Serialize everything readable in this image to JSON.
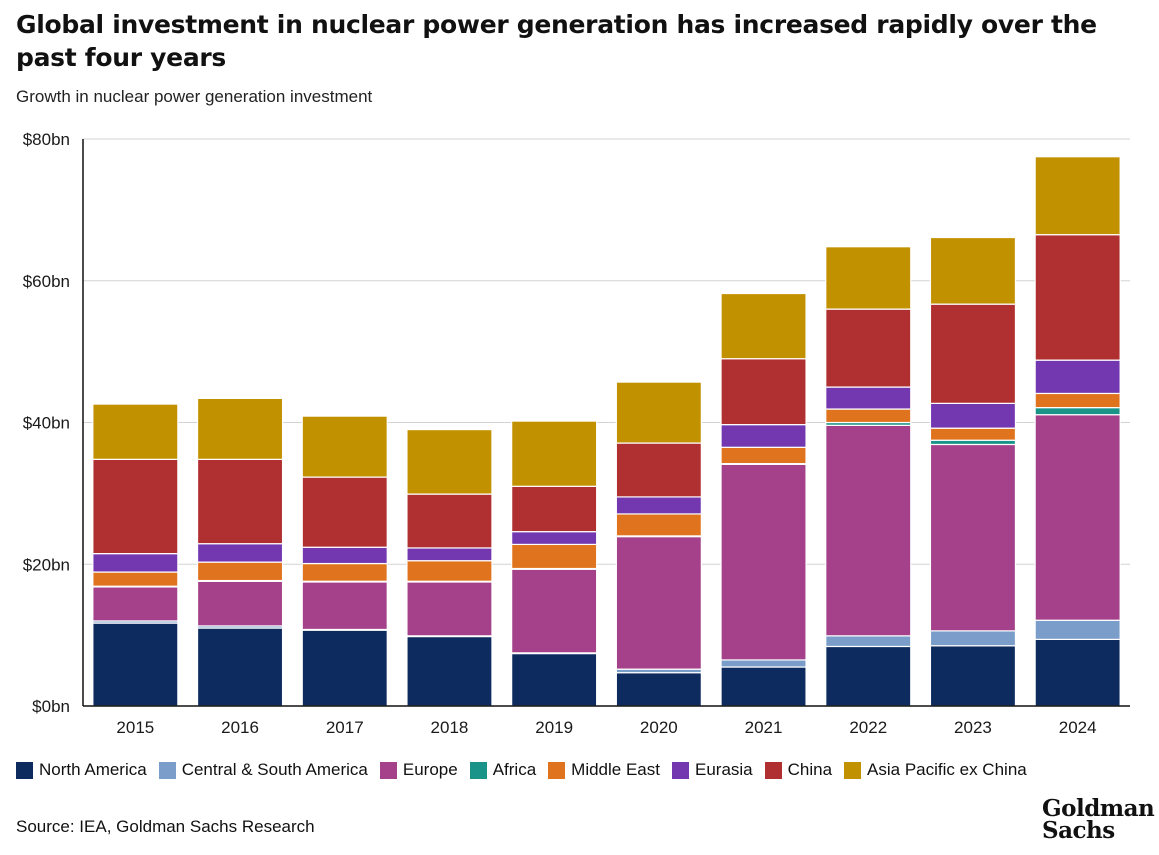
{
  "title": "Global investment in nuclear power generation has increased rapidly over the past four years",
  "subtitle": "Growth in nuclear power generation investment",
  "source": "Source: IEA, Goldman Sachs Research",
  "logo_text": [
    "Goldman",
    "Sachs"
  ],
  "chart_data": {
    "type": "bar",
    "stacked": true,
    "categories": [
      "2015",
      "2016",
      "2017",
      "2018",
      "2019",
      "2020",
      "2021",
      "2022",
      "2023",
      "2024"
    ],
    "yticks": [
      0,
      20,
      40,
      60,
      80
    ],
    "ytick_labels": [
      "$0bn",
      "$20bn",
      "$40bn",
      "$60bn",
      "$80bn"
    ],
    "ylim": [
      0,
      80
    ],
    "grid": true,
    "legend_position": "bottom",
    "series": [
      {
        "name": "North America",
        "color": "#0d2b5e",
        "values": [
          11.7,
          11.0,
          10.7,
          9.8,
          7.4,
          4.7,
          5.5,
          8.4,
          8.5,
          9.4
        ]
      },
      {
        "name": "Central & South America",
        "color": "#7a9dc9",
        "values": [
          0.3,
          0.3,
          0.1,
          0.1,
          0.1,
          0.5,
          1.0,
          1.5,
          2.1,
          2.7
        ]
      },
      {
        "name": "Europe",
        "color": "#a4418a",
        "values": [
          4.8,
          6.3,
          6.7,
          7.6,
          11.8,
          18.7,
          27.6,
          29.7,
          26.3,
          29.0
        ]
      },
      {
        "name": "Africa",
        "color": "#1a9488",
        "values": [
          0.1,
          0.1,
          0.1,
          0.1,
          0.1,
          0.1,
          0.1,
          0.4,
          0.6,
          1.0
        ]
      },
      {
        "name": "Middle East",
        "color": "#e0741e",
        "values": [
          2.0,
          2.6,
          2.5,
          2.9,
          3.4,
          3.1,
          2.3,
          1.9,
          1.7,
          2.0
        ]
      },
      {
        "name": "Eurasia",
        "color": "#7338b0",
        "values": [
          2.6,
          2.6,
          2.3,
          1.8,
          1.8,
          2.4,
          3.2,
          3.1,
          3.5,
          4.7
        ]
      },
      {
        "name": "China",
        "color": "#b03031",
        "values": [
          13.3,
          11.9,
          9.9,
          7.6,
          6.4,
          7.6,
          9.3,
          11.0,
          14.0,
          17.7
        ]
      },
      {
        "name": "Asia Pacific ex China",
        "color": "#c29100",
        "values": [
          7.8,
          8.6,
          8.6,
          9.1,
          9.2,
          8.6,
          9.2,
          8.8,
          9.4,
          11.0
        ]
      }
    ]
  }
}
